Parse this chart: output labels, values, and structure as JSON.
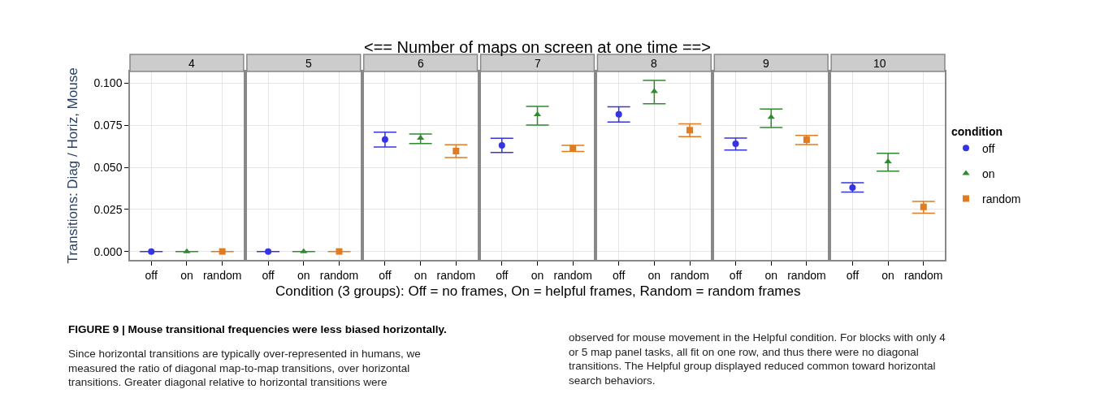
{
  "chart_data": [
    {
      "type": "scatter",
      "title": "4",
      "xlabel": "Condition (3 groups): Off = no frames, On = helpful frames, Random = random frames",
      "ylabel": "Transitions: Diag / Horiz, Mouse",
      "annotations": [
        "<== Number of maps on screen at one time ==>",
        "FIGURE 9 | Mouse transitional frequencies were less biased horizontally.",
        "Since horizontal transitions are typically over-represented in humans, we measured the ratio of diagonal map-to-map transitions, over horizontal transitions. Greater diagonal relative to horizontal transitions were observed for mouse movement in the Helpful condition. For blocks with only 4 or 5 map panel tasks, all fit on one row, and thus there were no diagonal transitions. The Helpful group displayed reduced common toward horizontal search behaviors."
      ],
      "legend": "right",
      "legend_title": "condition",
      "categories": [
        "off",
        "on",
        "random"
      ],
      "ylim": [
        -0.005,
        0.107
      ],
      "yticks": [
        {
          "value": 0,
          "label": "0.000"
        },
        {
          "value": 0.025,
          "label": "0.025"
        },
        {
          "value": 0.05,
          "label": "0.050"
        },
        {
          "value": 0.075,
          "label": "0.075"
        },
        {
          "value": 0.1,
          "label": "0.100"
        }
      ],
      "grid": true,
      "series": [
        {
          "name": "off",
          "color": "#3434e0",
          "marker": "circle",
          "values": [
            0,
            null,
            null
          ],
          "errors": [
            0,
            null,
            null
          ]
        },
        {
          "name": "on",
          "color": "#2e8b2e",
          "marker": "triangle",
          "values": [
            null,
            0,
            null
          ],
          "errors": [
            null,
            0,
            null
          ]
        },
        {
          "name": "random",
          "color": "#e07b22",
          "marker": "square",
          "values": [
            null,
            null,
            0
          ],
          "errors": [
            null,
            null,
            0
          ]
        }
      ]
    },
    {
      "type": "scatter",
      "title": "5",
      "categories": [
        "off",
        "on",
        "random"
      ],
      "ylim": [
        -0.005,
        0.107
      ],
      "yticks": [
        0,
        0.025,
        0.05,
        0.075,
        0.1
      ],
      "grid": true,
      "tick_labels": "x",
      "series": [
        {
          "color": "#3434e0",
          "marker": "circle",
          "values": [
            0,
            null,
            null
          ],
          "errors": [
            0,
            null,
            null
          ]
        },
        {
          "color": "#2e8b2e",
          "marker": "triangle",
          "values": [
            null,
            0,
            null
          ],
          "errors": [
            null,
            0,
            null
          ]
        },
        {
          "color": "#e07b22",
          "marker": "square",
          "values": [
            null,
            null,
            0
          ],
          "errors": [
            null,
            null,
            0
          ]
        }
      ]
    },
    {
      "type": "scatter",
      "title": "6",
      "categories": [
        "off",
        "on",
        "random"
      ],
      "ylim": [
        -0.005,
        0.107
      ],
      "yticks": [
        0,
        0.025,
        0.05,
        0.075,
        0.1
      ],
      "grid": true,
      "tick_labels": "x",
      "series": [
        {
          "color": "#3434e0",
          "marker": "circle",
          "values": [
            0.0666,
            null,
            null
          ],
          "errors": [
            [
              0.0621,
              0.0709
            ],
            null,
            null
          ]
        },
        {
          "color": "#2e8b2e",
          "marker": "triangle",
          "values": [
            null,
            0.0674,
            null
          ],
          "errors": [
            null,
            [
              0.0642,
              0.0698
            ],
            null
          ]
        },
        {
          "color": "#e07b22",
          "marker": "square",
          "values": [
            null,
            null,
            0.0597
          ],
          "errors": [
            null,
            null,
            [
              0.0558,
              0.0634
            ]
          ]
        }
      ]
    },
    {
      "type": "scatter",
      "title": "7",
      "categories": [
        "off",
        "on",
        "random"
      ],
      "ylim": [
        -0.005,
        0.107
      ],
      "yticks": [
        0,
        0.025,
        0.05,
        0.075,
        0.1
      ],
      "grid": true,
      "tick_labels": "x",
      "series": [
        {
          "color": "#3434e0",
          "marker": "circle",
          "values": [
            0.0631,
            null,
            null
          ],
          "errors": [
            [
              0.0589,
              0.0673
            ],
            null,
            null
          ]
        },
        {
          "color": "#2e8b2e",
          "marker": "triangle",
          "values": [
            null,
            0.0814,
            null
          ],
          "errors": [
            null,
            [
              0.0751,
              0.0863
            ],
            null
          ]
        },
        {
          "color": "#e07b22",
          "marker": "square",
          "values": [
            null,
            null,
            0.0613
          ],
          "errors": [
            null,
            null,
            [
              0.0594,
              0.0631
            ]
          ]
        }
      ]
    },
    {
      "type": "scatter",
      "title": "8",
      "categories": [
        "off",
        "on",
        "random"
      ],
      "ylim": [
        -0.005,
        0.107
      ],
      "yticks": [
        0,
        0.025,
        0.05,
        0.075,
        0.1
      ],
      "grid": true,
      "tick_labels": "x",
      "series": [
        {
          "color": "#3434e0",
          "marker": "circle",
          "values": [
            0.0815,
            null,
            null
          ],
          "errors": [
            [
              0.0769,
              0.086
            ],
            null,
            null
          ]
        },
        {
          "color": "#2e8b2e",
          "marker": "triangle",
          "values": [
            null,
            0.0952,
            null
          ],
          "errors": [
            null,
            [
              0.0878,
              0.1017
            ],
            null
          ]
        },
        {
          "color": "#e07b22",
          "marker": "square",
          "values": [
            null,
            null,
            0.0721
          ],
          "errors": [
            null,
            null,
            [
              0.0682,
              0.0759
            ]
          ]
        }
      ]
    },
    {
      "type": "scatter",
      "title": "9",
      "categories": [
        "off",
        "on",
        "random"
      ],
      "ylim": [
        -0.005,
        0.107
      ],
      "yticks": [
        0,
        0.025,
        0.05,
        0.075,
        0.1
      ],
      "grid": true,
      "tick_labels": "x",
      "series": [
        {
          "color": "#3434e0",
          "marker": "circle",
          "values": [
            0.064,
            null,
            null
          ],
          "errors": [
            [
              0.0603,
              0.0674
            ],
            null,
            null
          ]
        },
        {
          "color": "#2e8b2e",
          "marker": "triangle",
          "values": [
            null,
            0.0798,
            null
          ],
          "errors": [
            null,
            [
              0.0737,
              0.0847
            ],
            null
          ]
        },
        {
          "color": "#e07b22",
          "marker": "square",
          "values": [
            null,
            null,
            0.0664
          ],
          "errors": [
            null,
            null,
            [
              0.0636,
              0.069
            ]
          ]
        }
      ]
    },
    {
      "type": "scatter",
      "title": "10",
      "categories": [
        "off",
        "on",
        "random"
      ],
      "ylim": [
        -0.005,
        0.107
      ],
      "yticks": [
        0,
        0.025,
        0.05,
        0.075,
        0.1
      ],
      "grid": true,
      "tick_labels": "x",
      "series": [
        {
          "color": "#3434e0",
          "marker": "circle",
          "values": [
            0.038,
            null,
            null
          ],
          "errors": [
            [
              0.0353,
              0.0409
            ],
            null,
            null
          ]
        },
        {
          "color": "#2e8b2e",
          "marker": "triangle",
          "values": [
            null,
            0.0534,
            null
          ],
          "errors": [
            null,
            [
              0.0477,
              0.0584
            ],
            null
          ]
        },
        {
          "color": "#e07b22",
          "marker": "square",
          "values": [
            null,
            null,
            0.0265
          ],
          "errors": [
            null,
            null,
            [
              0.0228,
              0.0297
            ]
          ]
        }
      ]
    }
  ]
}
